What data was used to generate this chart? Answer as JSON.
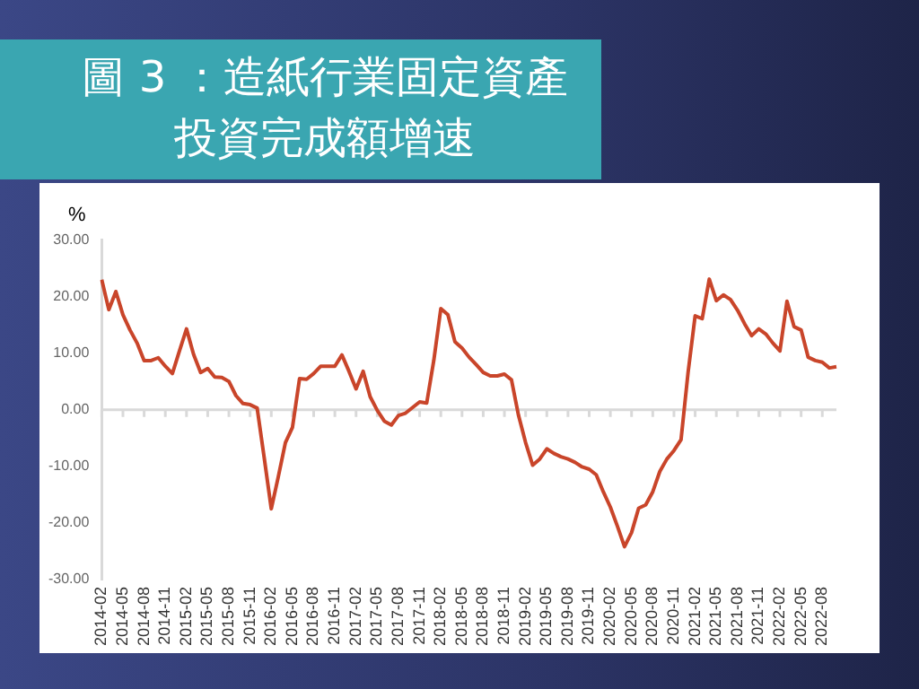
{
  "chart_data": {
    "type": "line",
    "title": "圖 3 ：造紙行業固定資產投資完成額增速",
    "ylabel": "%",
    "categories": [
      "2014-02",
      null,
      null,
      "2014-05",
      null,
      null,
      "2014-08",
      null,
      null,
      "2014-11",
      null,
      null,
      "2015-02",
      null,
      null,
      "2015-05",
      null,
      null,
      "2015-08",
      null,
      null,
      "2015-11",
      null,
      null,
      "2016-02",
      null,
      null,
      "2016-05",
      null,
      null,
      "2016-08",
      null,
      null,
      "2016-11",
      null,
      null,
      "2017-02",
      null,
      null,
      "2017-05",
      null,
      null,
      "2017-08",
      null,
      null,
      "2017-11",
      null,
      null,
      "2018-02",
      null,
      null,
      "2018-05",
      null,
      null,
      "2018-08",
      null,
      null,
      "2018-11",
      null,
      null,
      "2019-02",
      null,
      null,
      "2019-05",
      null,
      null,
      "2019-08",
      null,
      null,
      "2019-11",
      null,
      null,
      "2020-02",
      null,
      null,
      "2020-05",
      null,
      null,
      "2020-08",
      null,
      null,
      "2020-11",
      null,
      null,
      "2021-02",
      null,
      null,
      "2021-05",
      null,
      null,
      "2021-08",
      null,
      null,
      "2021-11",
      null,
      null,
      "2022-02",
      null,
      null,
      "2022-05",
      null,
      null,
      "2022-08",
      null,
      null
    ],
    "series": [
      {
        "color": "#c9452a",
        "values": [
          23.0,
          17.7,
          20.9,
          16.8,
          14.1,
          11.8,
          8.7,
          8.7,
          9.2,
          7.7,
          6.4,
          10.4,
          14.3,
          9.8,
          6.6,
          7.3,
          5.8,
          5.7,
          5.0,
          2.5,
          1.1,
          0.9,
          0.3,
          -8.5,
          -17.5,
          -11.8,
          -5.8,
          -3.1,
          5.5,
          5.4,
          6.4,
          7.7,
          7.7,
          7.7,
          9.7,
          6.8,
          3.7,
          6.8,
          2.3,
          -0.1,
          -2.0,
          -2.7,
          -1.0,
          -0.6,
          0.4,
          1.4,
          1.2,
          8.7,
          17.9,
          16.8,
          12.0,
          10.9,
          9.3,
          8.0,
          6.6,
          6.0,
          6.0,
          6.3,
          5.3,
          -1.0,
          -5.8,
          -9.8,
          -8.7,
          -6.9,
          -7.7,
          -8.3,
          -8.7,
          -9.3,
          -10.1,
          -10.5,
          -11.5,
          -14.5,
          -17.2,
          -20.6,
          -24.2,
          -21.7,
          -17.4,
          -16.8,
          -14.5,
          -10.9,
          -8.7,
          -7.2,
          -5.3,
          6.6,
          16.6,
          16.1,
          23.1,
          19.3,
          20.3,
          19.5,
          17.6,
          15.2,
          13.1,
          14.3,
          13.4,
          11.8,
          10.4,
          19.2,
          14.7,
          14.1,
          9.3,
          8.7,
          8.4,
          7.4,
          7.6
        ]
      }
    ],
    "ylim": [
      -30,
      30
    ],
    "yticks": [
      {
        "value": -30,
        "label": "-30.00"
      },
      {
        "value": -20,
        "label": "-20.00"
      },
      {
        "value": -10,
        "label": "-10.00"
      },
      {
        "value": 0,
        "label": "0.00"
      },
      {
        "value": 10,
        "label": "10.00"
      },
      {
        "value": 20,
        "label": "20.00"
      },
      {
        "value": 30,
        "label": "30.00"
      }
    ],
    "ref_lines": [
      {
        "axis": "y",
        "value": 0,
        "color": "#d9d9d9"
      }
    ],
    "grid": false,
    "legend": false,
    "marker": "none",
    "line_style": "solid"
  }
}
